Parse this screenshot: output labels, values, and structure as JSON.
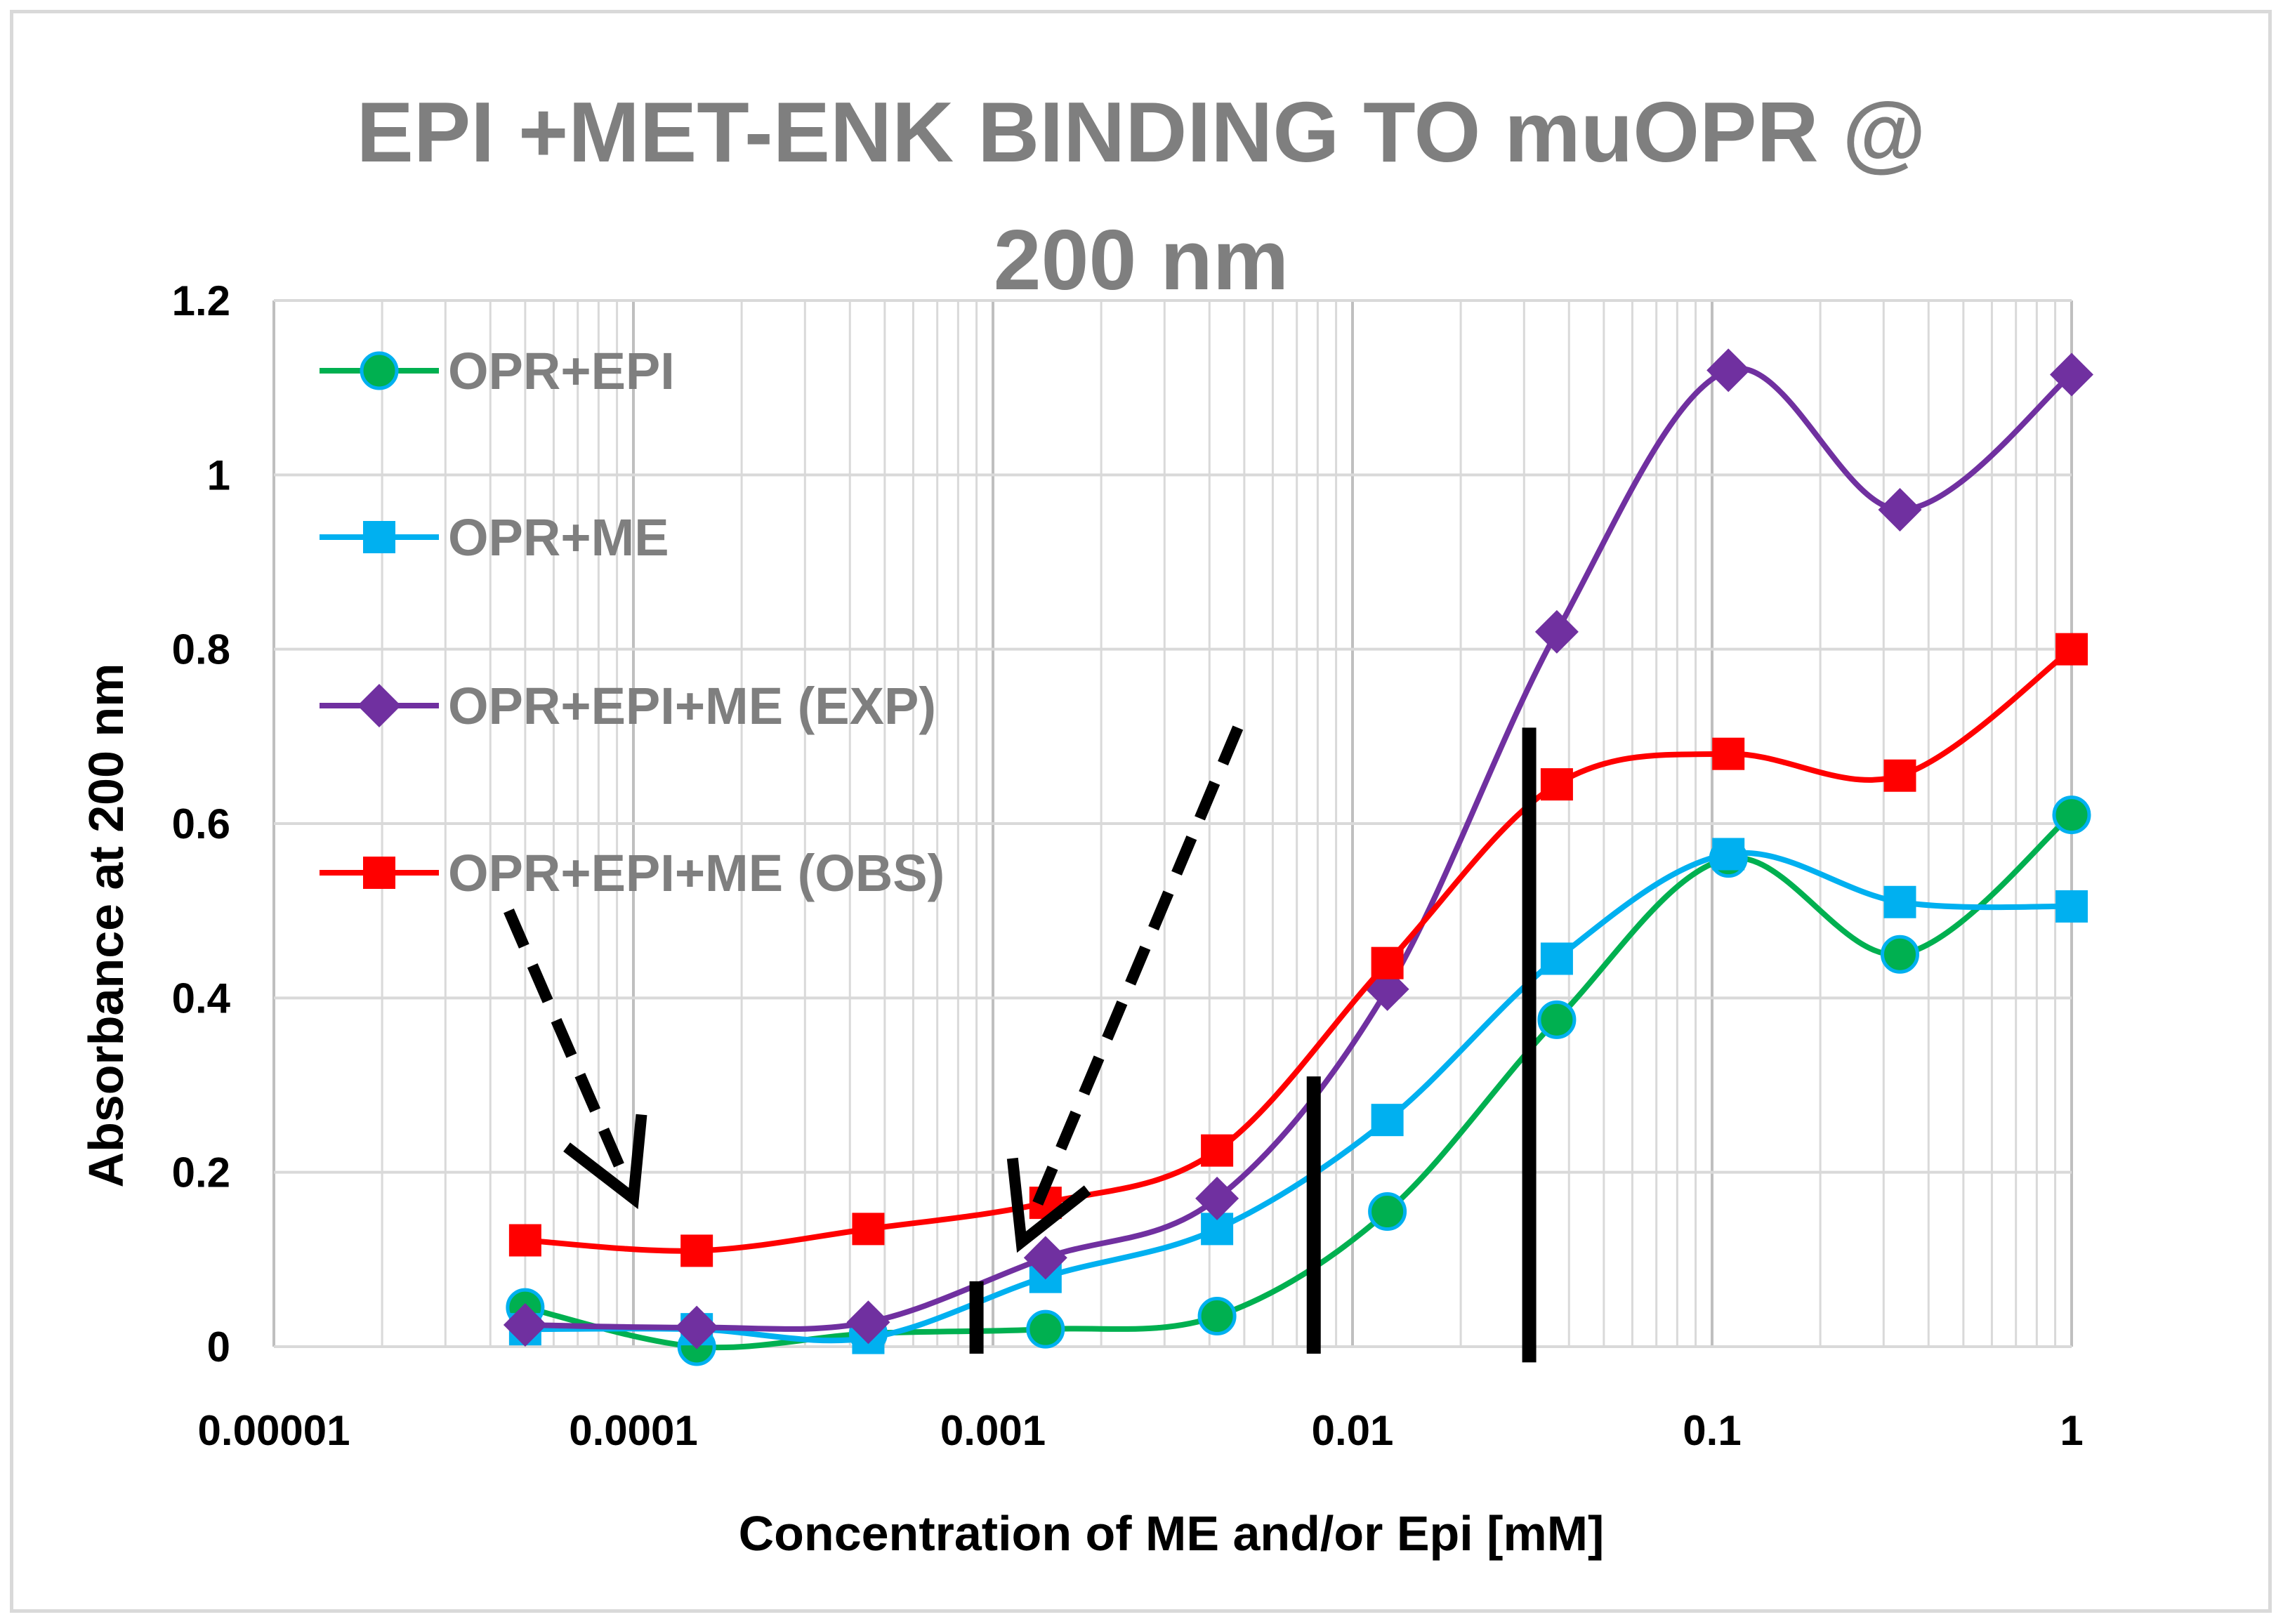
{
  "chart_data": {
    "type": "line",
    "title_lines": [
      "EPI +MET-ENK BINDING TO muOPR @",
      "200 nm"
    ],
    "xlabel": "Concentration of ME and/or Epi [mM]",
    "ylabel": "Absorbance at 200 nm",
    "x_scale": "log",
    "xlim": [
      1e-05,
      1
    ],
    "ylim": [
      0,
      1.2
    ],
    "x_ticks": [
      1e-05,
      0.0001,
      0.001,
      0.01,
      0.1,
      1
    ],
    "x_tick_labels": [
      "0.00001",
      "0.0001",
      "0.001",
      "0.01",
      "0.1",
      "1"
    ],
    "y_ticks": [
      0,
      0.2,
      0.4,
      0.6,
      0.8,
      1.0,
      1.2
    ],
    "y_tick_labels": [
      "0",
      "0.2",
      "0.4",
      "0.6",
      "0.8",
      "1",
      "1.2"
    ],
    "grid": true,
    "legend_position": "top-left",
    "x": [
      5e-05,
      0.00015,
      0.00045,
      0.0014,
      0.0042,
      0.0125,
      0.037,
      0.111,
      0.333,
      1
    ],
    "series": [
      {
        "name": "OPR+EPI",
        "color": "#00b050",
        "marker": "circle",
        "marker_color": "#00b050",
        "marker_edge": "#00b0f0",
        "values": [
          0.045,
          0.0,
          0.015,
          0.02,
          0.035,
          0.155,
          0.375,
          0.56,
          0.45,
          0.61
        ]
      },
      {
        "name": "OPR+ME",
        "color": "#00b0f0",
        "marker": "square",
        "values": [
          0.02,
          0.02,
          0.01,
          0.08,
          0.135,
          0.26,
          0.445,
          0.565,
          0.51,
          0.505
        ]
      },
      {
        "name": "OPR+EPI+ME (EXP)",
        "color": "#7030a0",
        "marker": "diamond",
        "values": [
          0.025,
          0.022,
          0.028,
          0.102,
          0.17,
          0.41,
          0.82,
          1.12,
          0.96,
          1.115
        ]
      },
      {
        "name": "OPR+EPI+ME (OBS)",
        "color": "#ff0000",
        "marker": "square",
        "values": [
          0.122,
          0.11,
          0.135,
          0.165,
          0.225,
          0.44,
          0.645,
          0.68,
          0.655,
          0.8
        ]
      }
    ],
    "annotations": {
      "dashed_arrows": [
        {
          "from": [
            4.5e-05,
            0.5
          ],
          "to": [
            0.0001,
            0.17
          ]
        },
        {
          "from": [
            0.0048,
            0.71
          ],
          "to": [
            0.0012,
            0.12
          ]
        }
      ],
      "vertical_bars": [
        {
          "x": 0.0009,
          "y_range": [
            0.0,
            0.075
          ]
        },
        {
          "x": 0.0078,
          "y_range": [
            0.0,
            0.31
          ]
        },
        {
          "x": 0.031,
          "y_range": [
            -0.01,
            0.71
          ]
        }
      ]
    }
  }
}
